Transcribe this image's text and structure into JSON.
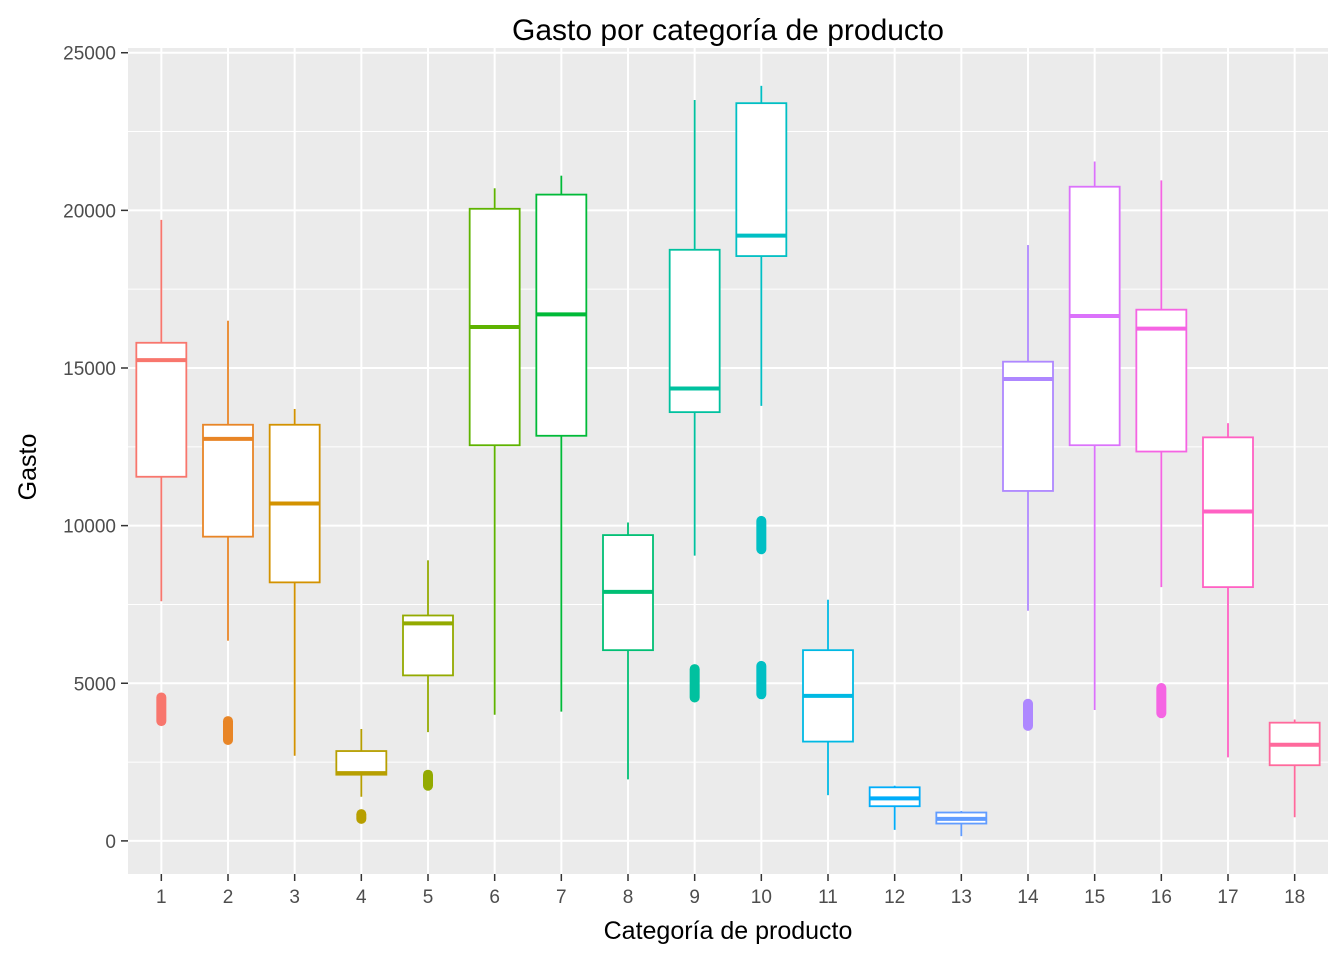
{
  "chart_data": {
    "type": "boxplot",
    "title": "Gasto por categoría de producto",
    "xlabel": "Categoría de producto",
    "ylabel": "Gasto",
    "ylim": [
      -1050,
      25150
    ],
    "y_ticks": [
      0,
      5000,
      10000,
      15000,
      20000,
      25000
    ],
    "y_tick_labels": [
      "0",
      "5000",
      "10000",
      "15000",
      "20000",
      "25000"
    ],
    "grid": true,
    "legend": "none",
    "categories": [
      "1",
      "2",
      "3",
      "4",
      "5",
      "6",
      "7",
      "8",
      "9",
      "10",
      "11",
      "12",
      "13",
      "14",
      "15",
      "16",
      "17",
      "18"
    ],
    "colors": [
      "#F8766D",
      "#E88526",
      "#D39200",
      "#B79F00",
      "#93AA00",
      "#5EB300",
      "#00BA38",
      "#00BF74",
      "#00C19F",
      "#00BFC4",
      "#00B9E3",
      "#00ADFA",
      "#619CFF",
      "#AE87FF",
      "#DB72FB",
      "#F564E3",
      "#FF61C3",
      "#FF699C"
    ],
    "boxes": [
      {
        "whisker_low": 7600,
        "q1": 11550,
        "median": 15250,
        "q3": 15800,
        "whisker_high": 19700,
        "outliers": [
          [
            3800,
            4550
          ]
        ]
      },
      {
        "whisker_low": 6350,
        "q1": 9650,
        "median": 12750,
        "q3": 13200,
        "whisker_high": 16500,
        "outliers": [
          [
            3200,
            3800
          ]
        ]
      },
      {
        "whisker_low": 2700,
        "q1": 8200,
        "median": 10700,
        "q3": 13200,
        "whisker_high": 13700,
        "outliers": []
      },
      {
        "whisker_low": 1400,
        "q1": 2100,
        "median": 2150,
        "q3": 2850,
        "whisker_high": 3550,
        "outliers": [
          [
            700,
            850
          ]
        ]
      },
      {
        "whisker_low": 3450,
        "q1": 5250,
        "median": 6900,
        "q3": 7150,
        "whisker_high": 8900,
        "outliers": [
          [
            1750,
            2100
          ]
        ]
      },
      {
        "whisker_low": 4000,
        "q1": 12550,
        "median": 16300,
        "q3": 20050,
        "whisker_high": 20700,
        "outliers": []
      },
      {
        "whisker_low": 4100,
        "q1": 12850,
        "median": 16700,
        "q3": 20500,
        "whisker_high": 21100,
        "outliers": []
      },
      {
        "whisker_low": 1950,
        "q1": 6050,
        "median": 7900,
        "q3": 9700,
        "whisker_high": 10100,
        "outliers": []
      },
      {
        "whisker_low": 9050,
        "q1": 13600,
        "median": 14350,
        "q3": 18750,
        "whisker_high": 23500,
        "outliers": [
          [
            4550,
            5450
          ]
        ]
      },
      {
        "whisker_low": 13800,
        "q1": 18550,
        "median": 19200,
        "q3": 23400,
        "whisker_high": 23950,
        "outliers": [
          [
            4650,
            5550
          ],
          [
            9250,
            10150
          ]
        ]
      },
      {
        "whisker_low": 1450,
        "q1": 3150,
        "median": 4600,
        "q3": 6050,
        "whisker_high": 7650,
        "outliers": []
      },
      {
        "whisker_low": 350,
        "q1": 1100,
        "median": 1350,
        "q3": 1700,
        "whisker_high": 1750,
        "outliers": []
      },
      {
        "whisker_low": 150,
        "q1": 550,
        "median": 700,
        "q3": 900,
        "whisker_high": 950,
        "outliers": []
      },
      {
        "whisker_low": 7300,
        "q1": 11100,
        "median": 14650,
        "q3": 15200,
        "whisker_high": 18900,
        "outliers": [
          [
            3650,
            4350
          ]
        ]
      },
      {
        "whisker_low": 4150,
        "q1": 12550,
        "median": 16650,
        "q3": 20750,
        "whisker_high": 21550,
        "outliers": []
      },
      {
        "whisker_low": 8050,
        "q1": 12350,
        "median": 16250,
        "q3": 16850,
        "whisker_high": 20950,
        "outliers": [
          [
            4050,
            4850
          ]
        ]
      },
      {
        "whisker_low": 2650,
        "q1": 8050,
        "median": 10450,
        "q3": 12800,
        "whisker_high": 13250,
        "outliers": []
      },
      {
        "whisker_low": 750,
        "q1": 2400,
        "median": 3050,
        "q3": 3750,
        "whisker_high": 3850,
        "outliers": []
      }
    ]
  }
}
